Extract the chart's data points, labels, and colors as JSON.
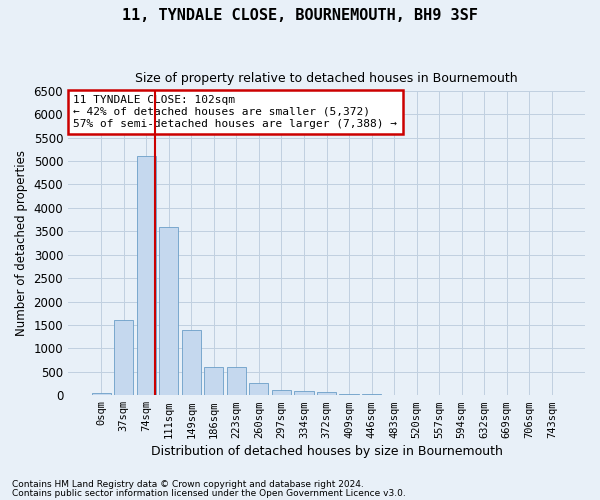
{
  "title": "11, TYNDALE CLOSE, BOURNEMOUTH, BH9 3SF",
  "subtitle": "Size of property relative to detached houses in Bournemouth",
  "xlabel": "Distribution of detached houses by size in Bournemouth",
  "ylabel": "Number of detached properties",
  "footnote1": "Contains HM Land Registry data © Crown copyright and database right 2024.",
  "footnote2": "Contains public sector information licensed under the Open Government Licence v3.0.",
  "bin_labels": [
    "0sqm",
    "37sqm",
    "74sqm",
    "111sqm",
    "149sqm",
    "186sqm",
    "223sqm",
    "260sqm",
    "297sqm",
    "334sqm",
    "372sqm",
    "409sqm",
    "446sqm",
    "483sqm",
    "520sqm",
    "557sqm",
    "594sqm",
    "632sqm",
    "669sqm",
    "706sqm",
    "743sqm"
  ],
  "bar_values": [
    50,
    1600,
    5100,
    3600,
    1400,
    600,
    600,
    250,
    120,
    80,
    60,
    30,
    30,
    5,
    2,
    2,
    2,
    2,
    2,
    2,
    2
  ],
  "bar_color": "#c5d8ee",
  "bar_edge_color": "#6b9ec8",
  "grid_color": "#c0d0e0",
  "bg_color": "#e8f0f8",
  "vline_color": "#cc0000",
  "vline_x": 2.4,
  "annotation_text": "11 TYNDALE CLOSE: 102sqm\n← 42% of detached houses are smaller (5,372)\n57% of semi-detached houses are larger (7,388) →",
  "annotation_box_edgecolor": "#cc0000",
  "annotation_box_facecolor": "#ffffff",
  "ylim_max": 6500,
  "yticks": [
    0,
    500,
    1000,
    1500,
    2000,
    2500,
    3000,
    3500,
    4000,
    4500,
    5000,
    5500,
    6000,
    6500
  ]
}
